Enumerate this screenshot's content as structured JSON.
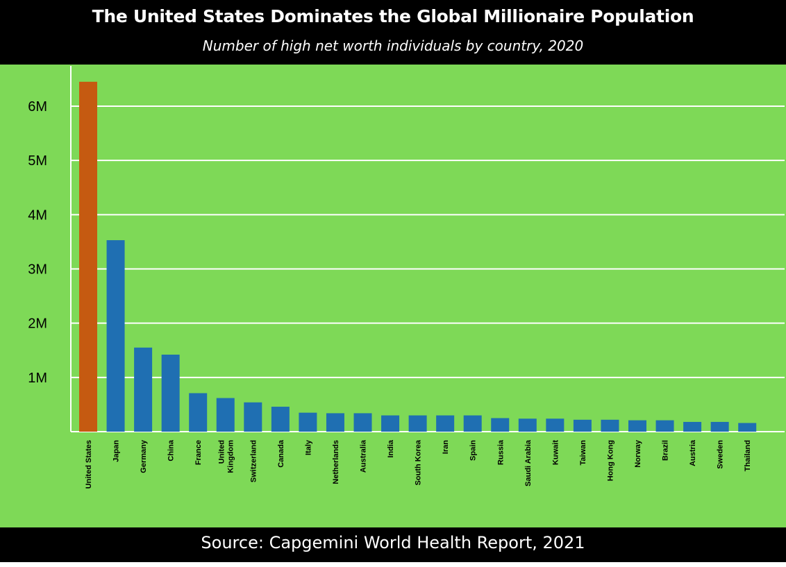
{
  "header": {
    "title": "The United States Dominates the Global Millionaire Population",
    "subtitle": "Number of high net worth individuals by country, 2020"
  },
  "footer": {
    "source": "Source: Capgemini World Health Report, 2021"
  },
  "colors": {
    "background": "#7ed957",
    "highlight_bar": "#c55a11",
    "bar": "#1f6fb2",
    "gridline": "#ffffff",
    "header_footer": "#000000"
  },
  "chart_data": {
    "type": "bar",
    "title": "The United States Dominates the Global Millionaire Population",
    "subtitle": "Number of high net worth individuals by country, 2020",
    "xlabel": "",
    "ylabel": "",
    "ylim": [
      0,
      6500000
    ],
    "grid": true,
    "yticks": [
      {
        "value": 1000000,
        "label": "1M"
      },
      {
        "value": 2000000,
        "label": "2M"
      },
      {
        "value": 3000000,
        "label": "3M"
      },
      {
        "value": 4000000,
        "label": "4M"
      },
      {
        "value": 5000000,
        "label": "5M"
      },
      {
        "value": 6000000,
        "label": "6M"
      }
    ],
    "categories": [
      [
        "United States"
      ],
      [
        "Japan"
      ],
      [
        "Germany"
      ],
      [
        "China"
      ],
      [
        "France"
      ],
      [
        "United",
        "Kingdom"
      ],
      [
        "Switzerland"
      ],
      [
        "Canada"
      ],
      [
        "Italy"
      ],
      [
        "Netherlands"
      ],
      [
        "Australia"
      ],
      [
        "India"
      ],
      [
        "South Korea"
      ],
      [
        "Iran"
      ],
      [
        "Spain"
      ],
      [
        "Russia"
      ],
      [
        "Saudi Arabia"
      ],
      [
        "Kuwait"
      ],
      [
        "Taiwan"
      ],
      [
        "Hong Kong"
      ],
      [
        "Norway"
      ],
      [
        "Brazil"
      ],
      [
        "Austria"
      ],
      [
        "Sweden"
      ],
      [
        "Thailand"
      ]
    ],
    "values": [
      6450000,
      3530000,
      1550000,
      1420000,
      710000,
      620000,
      540000,
      460000,
      350000,
      340000,
      340000,
      300000,
      300000,
      300000,
      300000,
      250000,
      240000,
      240000,
      220000,
      220000,
      210000,
      210000,
      180000,
      180000,
      160000
    ],
    "highlight_index": 0
  }
}
